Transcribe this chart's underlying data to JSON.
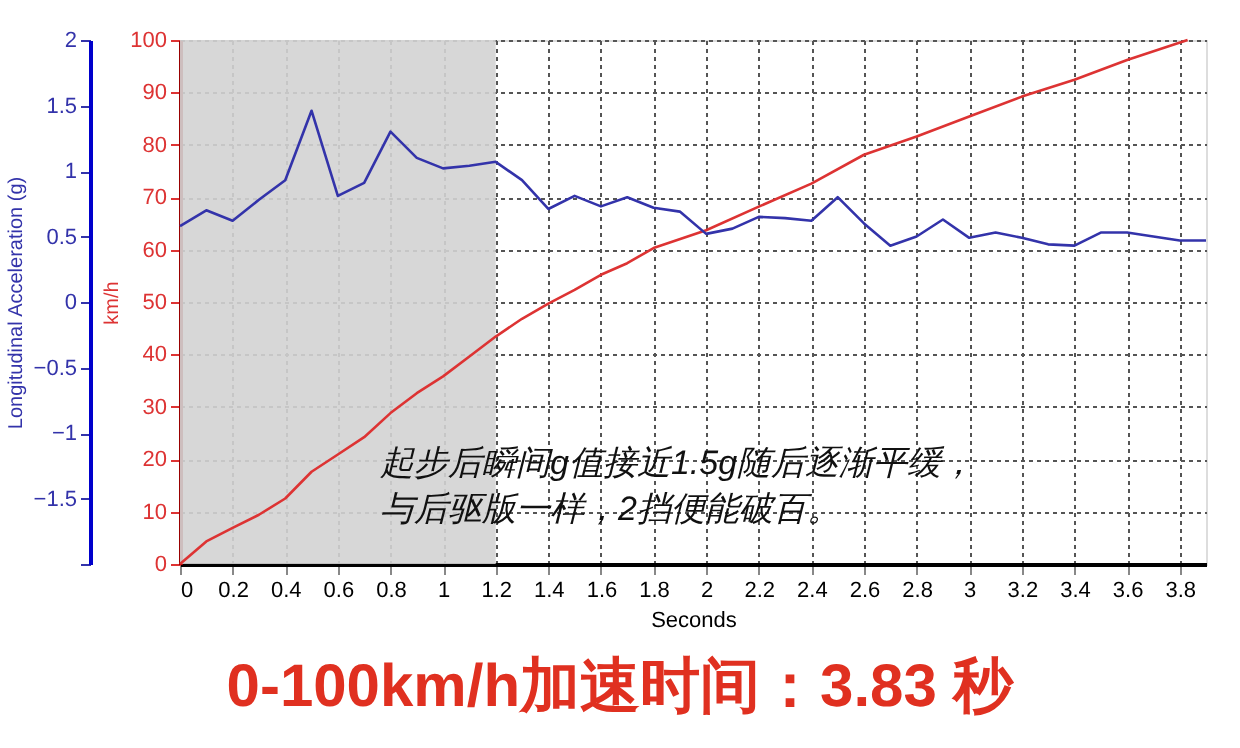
{
  "chart_data": {
    "type": "line",
    "xlabel": "Seconds",
    "ylabel": "km/h",
    "y2label": "Longitudinal Acceleration (g)",
    "xlim": [
      0,
      3.9
    ],
    "xticks": [
      0,
      0.2,
      0.4,
      0.6,
      0.8,
      1,
      1.2,
      1.4,
      1.6,
      1.8,
      2,
      2.2,
      2.4,
      2.6,
      2.8,
      3,
      3.2,
      3.4,
      3.6,
      3.8
    ],
    "ylim": [
      0,
      100
    ],
    "yticks": [
      0,
      10,
      20,
      30,
      40,
      50,
      60,
      70,
      80,
      90,
      100
    ],
    "y2lim": [
      -2,
      2
    ],
    "y2ticks": [
      {
        "value": -2,
        "label": null
      },
      -1.5,
      -1,
      -0.5,
      0,
      0.5,
      1,
      1.5,
      2
    ],
    "grid": true,
    "line_style": "solid",
    "marker": "none",
    "bands": [
      {
        "axis": "x",
        "from": 0,
        "to": 1.2,
        "color": "#d3d3d3"
      }
    ],
    "series": [
      {
        "color": "#dd3333",
        "x": [
          0,
          0.1,
          0.2,
          0.3,
          0.4,
          0.5,
          0.6,
          0.7,
          0.8,
          0.9,
          1.0,
          1.1,
          1.2,
          1.3,
          1.4,
          1.5,
          1.6,
          1.7,
          1.8,
          2.0,
          2.2,
          2.4,
          2.6,
          2.8,
          3.0,
          3.2,
          3.4,
          3.6,
          3.83
        ],
        "values": [
          0,
          4.3,
          6.9,
          9.4,
          12.5,
          17.6,
          20.9,
          24.2,
          28.8,
          32.6,
          35.8,
          39.6,
          43.4,
          46.8,
          49.7,
          52.3,
          55.2,
          57.4,
          60.3,
          63.7,
          68.2,
          72.6,
          78.1,
          81.6,
          85.4,
          89.2,
          92.4,
          96.2,
          100
        ]
      },
      {
        "color": "#3333aa",
        "axis": "y2",
        "x": [
          0,
          0.1,
          0.2,
          0.3,
          0.4,
          0.5,
          0.6,
          0.7,
          0.8,
          0.9,
          1.0,
          1.1,
          1.2,
          1.3,
          1.4,
          1.5,
          1.6,
          1.7,
          1.8,
          1.9,
          2.0,
          2.1,
          2.2,
          2.3,
          2.4,
          2.5,
          2.6,
          2.7,
          2.8,
          2.9,
          3.0,
          3.1,
          3.2,
          3.3,
          3.4,
          3.5,
          3.6,
          3.7,
          3.8,
          3.9
        ],
        "values": [
          0.58,
          0.7,
          0.62,
          0.78,
          0.93,
          1.46,
          0.81,
          0.91,
          1.3,
          1.1,
          1.02,
          1.04,
          1.07,
          0.93,
          0.71,
          0.81,
          0.73,
          0.8,
          0.72,
          0.69,
          0.52,
          0.56,
          0.65,
          0.64,
          0.62,
          0.8,
          0.6,
          0.43,
          0.5,
          0.63,
          0.49,
          0.53,
          0.49,
          0.44,
          0.43,
          0.53,
          0.53,
          0.5,
          0.47,
          0.47
        ]
      }
    ],
    "annotations": [
      "起步后瞬间g值接近1.5g随后逐渐平缓，",
      "与后驱版一样，2挡便能破百。",
      "0-100km/h加速时间：3.83 秒"
    ]
  }
}
